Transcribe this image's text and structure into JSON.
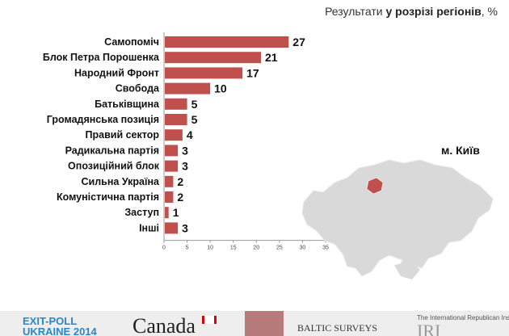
{
  "header": {
    "prefix": "Результати",
    "bold": "у розрізі регіонів",
    "suffix": ", %"
  },
  "region": "м. Київ",
  "colors": {
    "bar": "#c0504d",
    "axis": "#999999",
    "map_land": "#d9d9d9",
    "map_city": "#c0504d"
  },
  "chart_data": {
    "type": "bar",
    "orientation": "horizontal",
    "categories": [
      "Самопоміч",
      "Блок Петра Порошенка",
      "Народний Фронт",
      "Свобода",
      "Батьківщина",
      "Громадянська позиція",
      "Правий сектор",
      "Радикальна партія",
      "Опозиційний блок",
      "Сильна Україна",
      "Комуністична партія",
      "Заступ",
      "Інші"
    ],
    "values": [
      27,
      21,
      17,
      10,
      5,
      5,
      4,
      3,
      3,
      2,
      2,
      1,
      3
    ],
    "xlim": [
      0,
      35
    ],
    "xticks": [
      "0",
      "5",
      "10",
      "15",
      "20",
      "25",
      "30",
      "35"
    ],
    "grid": false
  },
  "footer": {
    "exit_poll_line1": "EXIT-POLL",
    "exit_poll_line2": "UKRAINE 2014",
    "canada": "Canada",
    "baltic": "BALTIC SURVEYS",
    "iri_caption": "The International Republican Institute",
    "iri": "IRI"
  },
  "icons": {
    "map": "ukraine-map-icon",
    "flag": "canada-flag-icon"
  }
}
